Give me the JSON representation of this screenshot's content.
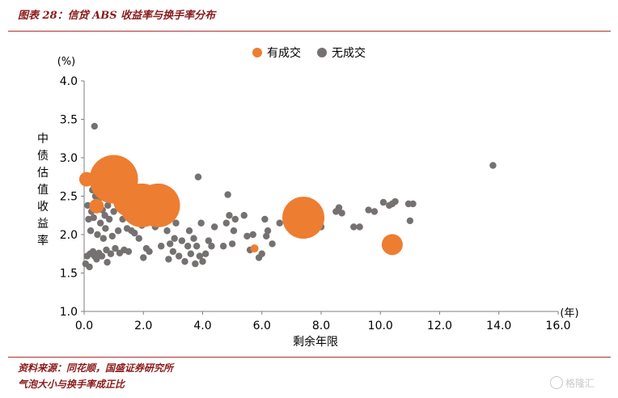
{
  "figure": {
    "title": "图表 28：信贷 ABS 收益率与换手率分布",
    "source": "资料来源：同花顺，国盛证券研究所",
    "note": "气泡大小与换手率成正比",
    "watermark": "格隆汇"
  },
  "colors": {
    "traded": "#ED7D31",
    "untraded": "#767171",
    "accent": "#8b1a1a"
  },
  "chart_data": {
    "type": "scatter",
    "title": "",
    "xlabel": "剩余年限",
    "ylabel": "中债估值收益率",
    "xunit": "(年)",
    "yunit": "(%)",
    "xlim": [
      0,
      16
    ],
    "ylim": [
      1.0,
      4.0
    ],
    "xticks": [
      "0.0",
      "2.0",
      "4.0",
      "6.0",
      "8.0",
      "10.0",
      "12.0",
      "14.0",
      "16.0"
    ],
    "yticks": [
      "1.0",
      "1.5",
      "2.0",
      "2.5",
      "3.0",
      "3.5",
      "4.0"
    ],
    "grid": false,
    "legend": "top-center",
    "series": [
      {
        "name": "有成交",
        "color": "#ED7D31",
        "points": [
          {
            "x": 0.08,
            "y": 2.72,
            "size": 9
          },
          {
            "x": 0.42,
            "y": 2.37,
            "size": 9
          },
          {
            "x": 1.0,
            "y": 2.72,
            "size": 30
          },
          {
            "x": 1.55,
            "y": 2.45,
            "size": 21
          },
          {
            "x": 1.95,
            "y": 2.38,
            "size": 27
          },
          {
            "x": 2.35,
            "y": 2.55,
            "size": 10
          },
          {
            "x": 2.5,
            "y": 2.38,
            "size": 27
          },
          {
            "x": 5.75,
            "y": 1.82,
            "size": 5
          },
          {
            "x": 6.9,
            "y": 2.22,
            "size": 6
          },
          {
            "x": 7.4,
            "y": 2.22,
            "size": 26
          },
          {
            "x": 10.4,
            "y": 1.87,
            "size": 13
          }
        ]
      },
      {
        "name": "无成交",
        "color": "#767171",
        "points": [
          {
            "x": 0.05,
            "y": 1.62
          },
          {
            "x": 0.1,
            "y": 1.72
          },
          {
            "x": 0.12,
            "y": 2.38
          },
          {
            "x": 0.15,
            "y": 2.2
          },
          {
            "x": 0.18,
            "y": 1.58
          },
          {
            "x": 0.2,
            "y": 1.75
          },
          {
            "x": 0.22,
            "y": 2.05
          },
          {
            "x": 0.25,
            "y": 2.3
          },
          {
            "x": 0.28,
            "y": 2.58
          },
          {
            "x": 0.3,
            "y": 1.78
          },
          {
            "x": 0.32,
            "y": 2.22
          },
          {
            "x": 0.35,
            "y": 1.72
          },
          {
            "x": 0.35,
            "y": 3.41
          },
          {
            "x": 0.38,
            "y": 2.5
          },
          {
            "x": 0.4,
            "y": 2.76
          },
          {
            "x": 0.42,
            "y": 1.68
          },
          {
            "x": 0.45,
            "y": 2.0
          },
          {
            "x": 0.48,
            "y": 2.45
          },
          {
            "x": 0.5,
            "y": 1.76
          },
          {
            "x": 0.55,
            "y": 2.15
          },
          {
            "x": 0.6,
            "y": 1.72
          },
          {
            "x": 0.62,
            "y": 2.32
          },
          {
            "x": 0.65,
            "y": 1.95
          },
          {
            "x": 0.7,
            "y": 2.25
          },
          {
            "x": 0.72,
            "y": 2.08
          },
          {
            "x": 0.75,
            "y": 1.8
          },
          {
            "x": 0.78,
            "y": 1.64
          },
          {
            "x": 0.8,
            "y": 2.38
          },
          {
            "x": 0.85,
            "y": 2.2
          },
          {
            "x": 0.9,
            "y": 1.75
          },
          {
            "x": 0.92,
            "y": 2.52
          },
          {
            "x": 0.95,
            "y": 1.98
          },
          {
            "x": 1.0,
            "y": 2.3
          },
          {
            "x": 1.05,
            "y": 1.82
          },
          {
            "x": 1.1,
            "y": 2.45
          },
          {
            "x": 1.15,
            "y": 2.05
          },
          {
            "x": 1.2,
            "y": 1.76
          },
          {
            "x": 1.25,
            "y": 2.78
          },
          {
            "x": 1.3,
            "y": 2.2
          },
          {
            "x": 1.35,
            "y": 1.8
          },
          {
            "x": 1.4,
            "y": 2.5
          },
          {
            "x": 1.45,
            "y": 2.08
          },
          {
            "x": 1.5,
            "y": 1.78
          },
          {
            "x": 1.55,
            "y": 2.3
          },
          {
            "x": 1.6,
            "y": 2.05
          },
          {
            "x": 1.65,
            "y": 2.48
          },
          {
            "x": 1.7,
            "y": 2.02
          },
          {
            "x": 1.75,
            "y": 2.2
          },
          {
            "x": 1.8,
            "y": 2.4
          },
          {
            "x": 1.85,
            "y": 1.95
          },
          {
            "x": 1.9,
            "y": 2.5
          },
          {
            "x": 1.95,
            "y": 2.12
          },
          {
            "x": 2.0,
            "y": 1.7
          },
          {
            "x": 2.05,
            "y": 2.45
          },
          {
            "x": 2.1,
            "y": 1.82
          },
          {
            "x": 2.15,
            "y": 2.25
          },
          {
            "x": 2.2,
            "y": 1.78
          },
          {
            "x": 2.3,
            "y": 2.3
          },
          {
            "x": 2.4,
            "y": 2.1
          },
          {
            "x": 2.6,
            "y": 1.85
          },
          {
            "x": 2.8,
            "y": 2.05
          },
          {
            "x": 2.85,
            "y": 1.68
          },
          {
            "x": 2.9,
            "y": 1.88
          },
          {
            "x": 3.0,
            "y": 1.78
          },
          {
            "x": 3.05,
            "y": 1.95
          },
          {
            "x": 3.1,
            "y": 2.15
          },
          {
            "x": 3.2,
            "y": 1.72
          },
          {
            "x": 3.3,
            "y": 1.92
          },
          {
            "x": 3.4,
            "y": 1.65
          },
          {
            "x": 3.5,
            "y": 1.85
          },
          {
            "x": 3.55,
            "y": 2.05
          },
          {
            "x": 3.6,
            "y": 1.75
          },
          {
            "x": 3.7,
            "y": 1.95
          },
          {
            "x": 3.75,
            "y": 1.62
          },
          {
            "x": 3.8,
            "y": 1.85
          },
          {
            "x": 3.85,
            "y": 2.75
          },
          {
            "x": 3.9,
            "y": 1.72
          },
          {
            "x": 3.95,
            "y": 2.15
          },
          {
            "x": 4.0,
            "y": 1.65
          },
          {
            "x": 4.1,
            "y": 1.75
          },
          {
            "x": 4.2,
            "y": 1.92
          },
          {
            "x": 4.3,
            "y": 1.85
          },
          {
            "x": 4.4,
            "y": 2.1
          },
          {
            "x": 4.7,
            "y": 1.85
          },
          {
            "x": 4.8,
            "y": 2.15
          },
          {
            "x": 4.85,
            "y": 2.52
          },
          {
            "x": 4.9,
            "y": 2.25
          },
          {
            "x": 5.0,
            "y": 1.88
          },
          {
            "x": 5.05,
            "y": 2.05
          },
          {
            "x": 5.1,
            "y": 2.2
          },
          {
            "x": 5.4,
            "y": 2.25
          },
          {
            "x": 5.5,
            "y": 1.98
          },
          {
            "x": 5.6,
            "y": 1.8
          },
          {
            "x": 5.7,
            "y": 2.0
          },
          {
            "x": 5.9,
            "y": 1.7
          },
          {
            "x": 6.0,
            "y": 1.75
          },
          {
            "x": 6.1,
            "y": 2.2
          },
          {
            "x": 6.15,
            "y": 1.98
          },
          {
            "x": 6.2,
            "y": 2.05
          },
          {
            "x": 6.35,
            "y": 1.88
          },
          {
            "x": 6.6,
            "y": 2.15
          },
          {
            "x": 7.5,
            "y": 2.3
          },
          {
            "x": 7.7,
            "y": 2.1
          },
          {
            "x": 7.8,
            "y": 2.12
          },
          {
            "x": 7.9,
            "y": 2.28
          },
          {
            "x": 8.0,
            "y": 2.1
          },
          {
            "x": 8.5,
            "y": 2.3
          },
          {
            "x": 8.6,
            "y": 2.35
          },
          {
            "x": 8.7,
            "y": 2.28
          },
          {
            "x": 9.1,
            "y": 2.1
          },
          {
            "x": 9.3,
            "y": 2.1
          },
          {
            "x": 9.6,
            "y": 2.32
          },
          {
            "x": 9.8,
            "y": 2.3
          },
          {
            "x": 10.1,
            "y": 2.42
          },
          {
            "x": 10.3,
            "y": 2.38
          },
          {
            "x": 10.4,
            "y": 2.4
          },
          {
            "x": 10.5,
            "y": 2.43
          },
          {
            "x": 10.95,
            "y": 2.4
          },
          {
            "x": 11.0,
            "y": 2.18
          },
          {
            "x": 11.1,
            "y": 2.4
          },
          {
            "x": 13.8,
            "y": 2.9
          }
        ]
      }
    ]
  }
}
